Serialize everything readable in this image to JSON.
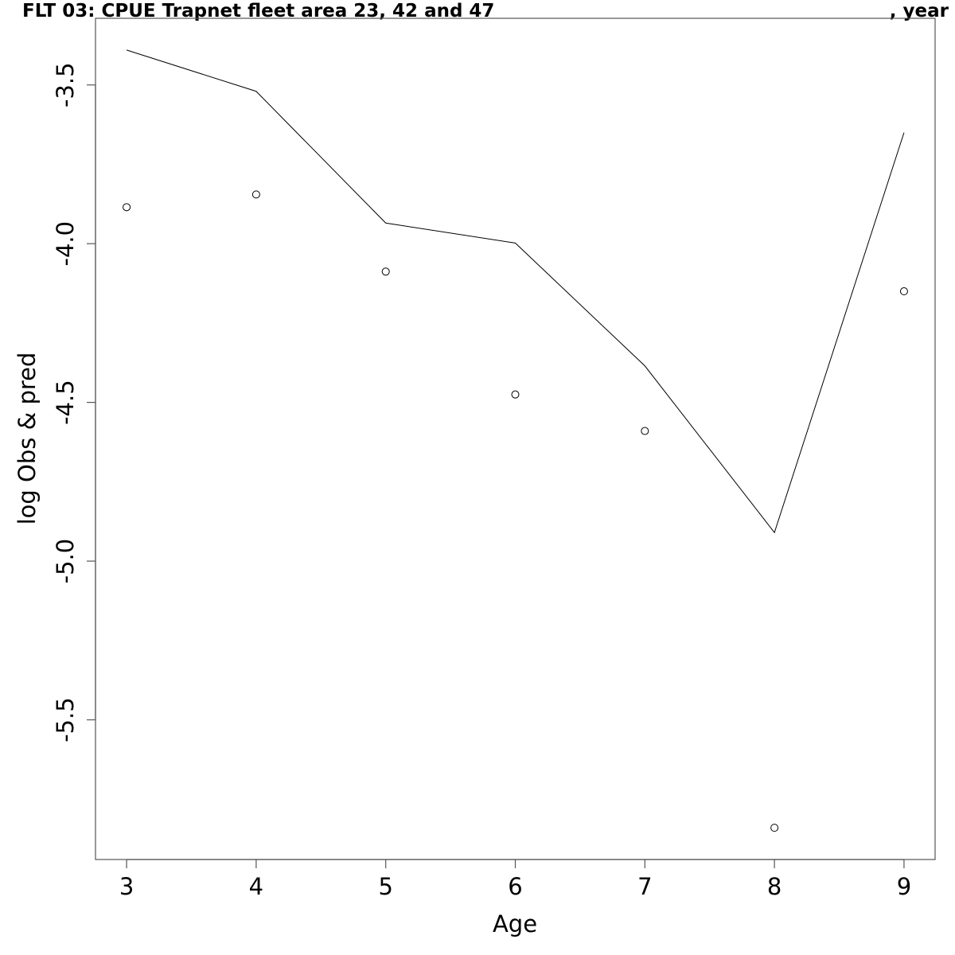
{
  "chart_data": {
    "type": "line",
    "title": "FLT 03: CPUE Trapnet fleet area 23, 42 and 47",
    "title_suffix": ", year",
    "xlabel": "Age",
    "ylabel": "log Obs & pred",
    "xlim": [
      2.76,
      9.24
    ],
    "ylim": [
      -5.94,
      -3.29
    ],
    "x_ticks": [
      3,
      4,
      5,
      6,
      7,
      8,
      9
    ],
    "x_tick_labels": [
      "3",
      "4",
      "5",
      "6",
      "7",
      "8",
      "9"
    ],
    "y_ticks": [
      -3.5,
      -4.0,
      -4.5,
      -5.0,
      -5.5
    ],
    "y_tick_labels": [
      "-3.5",
      "-4.0",
      "-4.5",
      "-5.0",
      "-5.5"
    ],
    "grid": false,
    "series": [
      {
        "kind": "line",
        "x": [
          3,
          4,
          5,
          6,
          7,
          8,
          9
        ],
        "values": [
          -3.39,
          -3.52,
          -3.935,
          -3.998,
          -4.385,
          -4.91,
          -3.65
        ],
        "color": "#000000"
      },
      {
        "kind": "points",
        "x": [
          3,
          4,
          5,
          6,
          7,
          8,
          9
        ],
        "values": [
          -3.885,
          -3.845,
          -4.088,
          -4.475,
          -4.59,
          -5.84,
          -4.15
        ],
        "color": "#000000"
      }
    ]
  }
}
